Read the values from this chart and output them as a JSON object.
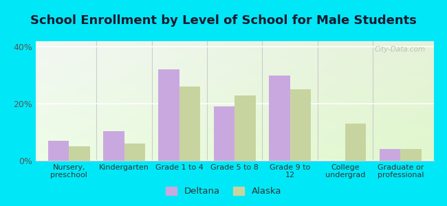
{
  "title": "School Enrollment by Level of School for Male Students",
  "categories": [
    "Nursery,\npreschool",
    "Kindergarten",
    "Grade 1 to 4",
    "Grade 5 to 8",
    "Grade 9 to\n12",
    "College\nundergrad",
    "Graduate or\nprofessional"
  ],
  "deltana": [
    7.0,
    10.5,
    32.0,
    19.0,
    30.0,
    0.0,
    4.0
  ],
  "alaska": [
    5.0,
    6.0,
    26.0,
    23.0,
    25.0,
    13.0,
    4.0
  ],
  "deltana_color": "#c9a8e0",
  "alaska_color": "#c8d4a0",
  "outer_bg": "#00e8f8",
  "plot_bg": "#eaf5e8",
  "ylim": [
    0,
    42
  ],
  "yticks": [
    0,
    20,
    40
  ],
  "ytick_labels": [
    "0%",
    "20%",
    "40%"
  ],
  "bar_width": 0.38,
  "title_fontsize": 13,
  "watermark_text": "City-Data.com",
  "legend_labels": [
    "Deltana",
    "Alaska"
  ]
}
